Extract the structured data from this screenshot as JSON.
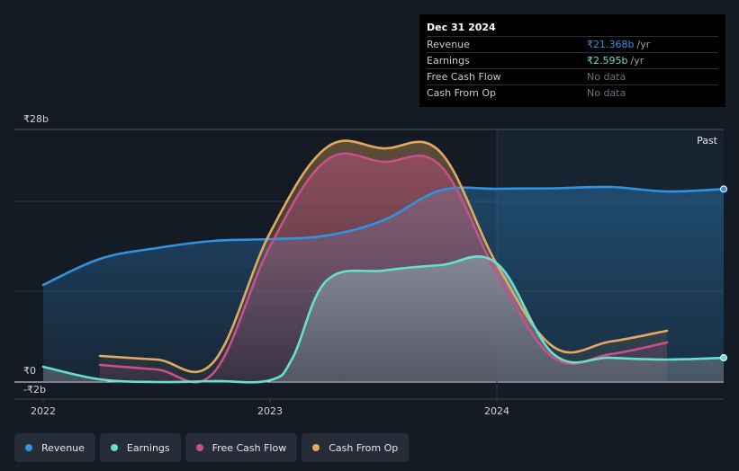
{
  "tooltip": {
    "date": "Dec 31 2024",
    "rows": [
      {
        "label": "Revenue",
        "value": "₹21.368b",
        "unit": "/yr",
        "color": "#2f94e0"
      },
      {
        "label": "Earnings",
        "value": "₹2.595b",
        "unit": "/yr",
        "color": "#65e0cf"
      },
      {
        "label": "Free Cash Flow",
        "value": "No data",
        "unit": "",
        "color": ""
      },
      {
        "label": "Cash From Op",
        "value": "No data",
        "unit": "",
        "color": ""
      }
    ]
  },
  "legend": [
    {
      "label": "Revenue",
      "color": "#2f94e0"
    },
    {
      "label": "Earnings",
      "color": "#65e0cf"
    },
    {
      "label": "Free Cash Flow",
      "color": "#c9508a"
    },
    {
      "label": "Cash From Op",
      "color": "#e2aa5e"
    }
  ],
  "chart_data": {
    "type": "area",
    "x_ticks": [
      "2022",
      "2023",
      "2024"
    ],
    "y_ticks": [
      "₹28b",
      "₹0",
      "-₹2b"
    ],
    "ylim": [
      -2,
      28
    ],
    "xlim": [
      2022.0,
      2025.0
    ],
    "past_label": "Past",
    "past_start": 2024.0,
    "series": [
      {
        "name": "Revenue",
        "color": "#2f94e0",
        "x": [
          2022.0,
          2022.25,
          2022.5,
          2022.75,
          2023.0,
          2023.25,
          2023.5,
          2023.75,
          2024.0,
          2024.25,
          2024.5,
          2024.75,
          2025.0
        ],
        "y": [
          10.7,
          13.6,
          14.8,
          15.6,
          15.8,
          16.2,
          17.9,
          21.2,
          21.4,
          21.45,
          21.6,
          21.1,
          21.368
        ]
      },
      {
        "name": "Earnings",
        "color": "#65e0cf",
        "x": [
          2022.0,
          2022.25,
          2022.5,
          2022.75,
          2023.0,
          2023.1,
          2023.25,
          2023.5,
          2023.75,
          2024.0,
          2024.25,
          2024.5,
          2024.75,
          2025.0
        ],
        "y": [
          1.6,
          0.2,
          -0.1,
          0.0,
          0.1,
          2.6,
          11.2,
          12.3,
          12.9,
          13.1,
          3.0,
          2.6,
          2.4,
          2.595
        ]
      },
      {
        "name": "Free Cash Flow",
        "color": "#c9508a",
        "x": [
          2022.25,
          2022.5,
          2022.75,
          2023.0,
          2023.25,
          2023.5,
          2023.75,
          2024.0,
          2024.25,
          2024.5,
          2024.75
        ],
        "y": [
          1.8,
          1.3,
          0.9,
          15.0,
          24.6,
          24.4,
          24.0,
          12.0,
          2.6,
          3.0,
          4.3
        ]
      },
      {
        "name": "Cash From Op",
        "color": "#e2aa5e",
        "x": [
          2022.25,
          2022.5,
          2022.75,
          2023.0,
          2023.25,
          2023.5,
          2023.75,
          2024.0,
          2024.25,
          2024.5,
          2024.75
        ],
        "y": [
          2.8,
          2.4,
          2.1,
          16.5,
          26.0,
          25.9,
          25.5,
          13.0,
          3.8,
          4.4,
          5.6
        ]
      }
    ]
  }
}
